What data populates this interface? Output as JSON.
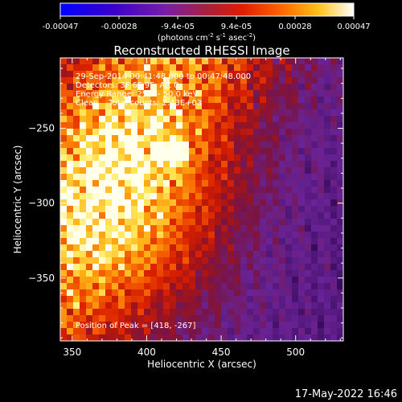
{
  "chart_data": {
    "type": "heatmap",
    "title": "Reconstructed RHESSI Image",
    "xlabel": "Heliocentric X (arcsec)",
    "ylabel": "Heliocentric Y (arcsec)",
    "xlim": [
      342,
      532
    ],
    "ylim": [
      -392,
      -203
    ],
    "x_ticks": [
      350,
      400,
      450,
      500
    ],
    "y_ticks": [
      -250,
      -300,
      -350
    ],
    "colorbar": {
      "ticks": [
        "-0.00047",
        "-0.00028",
        "-9.4e-05",
        "9.4e-05",
        "0.00028",
        "0.00047"
      ],
      "range": [
        -0.00047,
        0.00047
      ],
      "unit_prefix": "(photons cm",
      "unit_exp1": "-2",
      "unit_mid1": " s",
      "unit_exp2": "-1",
      "unit_mid2": " asec",
      "unit_exp3": "-2",
      "unit_suffix": ")"
    },
    "annotations": [
      "29-Sep-2014 00:41:48.000 to 00:47:48.000",
      "Detectors: 3F 6F 9F, Att 0",
      "Energy Range: 25.0 - 50.0 keV",
      "Clean    Total counts: 2.43E+03"
    ],
    "peak_label": "Position of Peak = [418, -267]",
    "peak": [
      418,
      -267
    ],
    "grid": false,
    "colormap": "black-purple-red-orange-yellow-white"
  },
  "timestamp": "17-May-2022 16:46"
}
